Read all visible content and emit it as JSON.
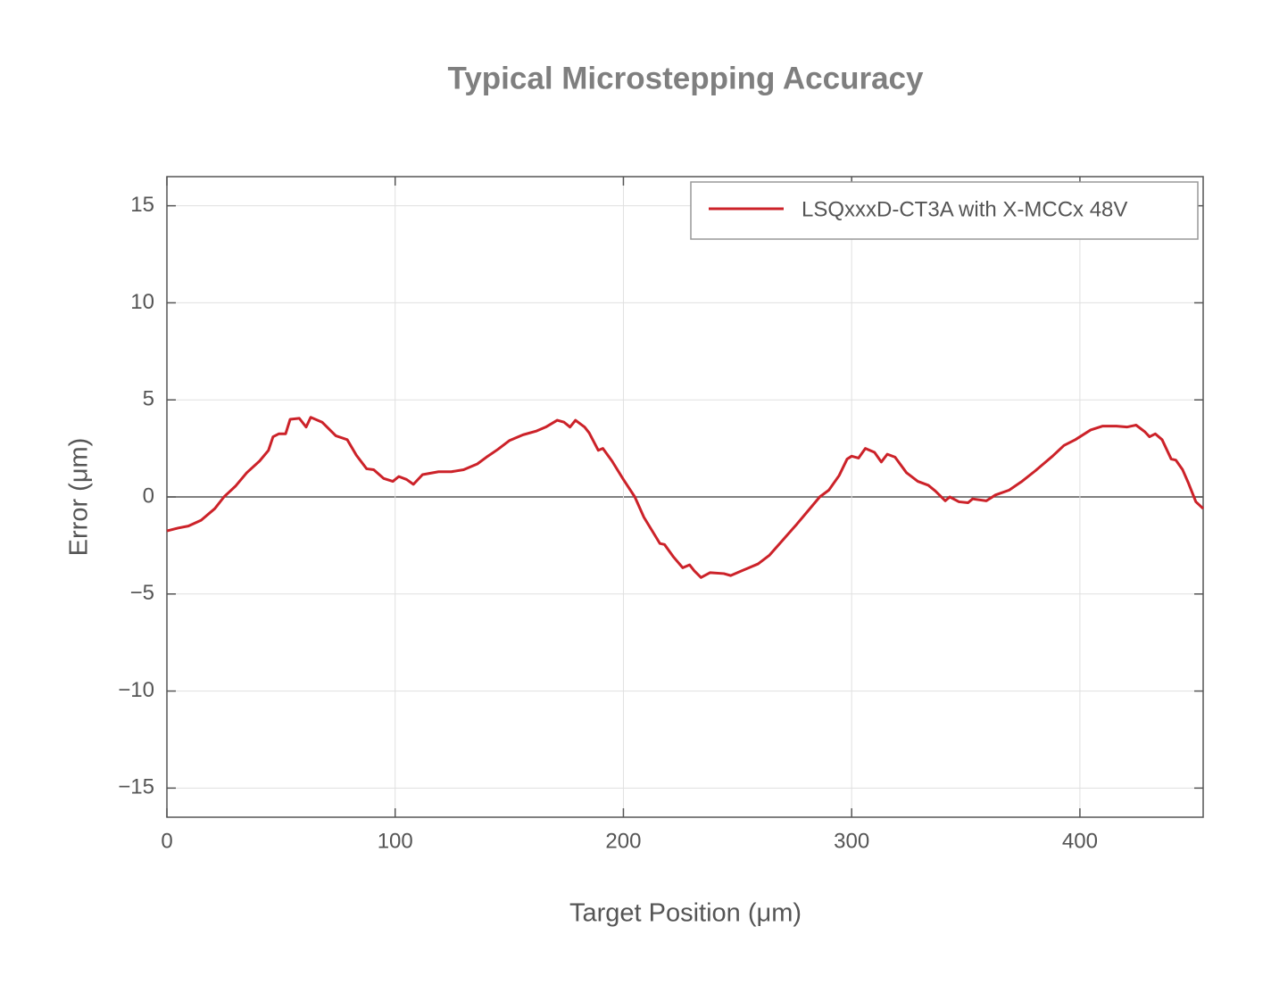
{
  "chart_data": {
    "type": "line",
    "title": "Typical Microstepping Accuracy",
    "xlabel": "Target Position (μm)",
    "ylabel": "Error (μm)",
    "xlim": [
      0,
      454
    ],
    "ylim": [
      -16.5,
      16.5
    ],
    "xticks": [
      0,
      100,
      200,
      300,
      400
    ],
    "yticks": [
      {
        "value": -15,
        "label": "−15"
      },
      {
        "value": -10,
        "label": "−10"
      },
      {
        "value": -5,
        "label": "−5"
      },
      0,
      5,
      10,
      15
    ],
    "grid": true,
    "legend": "upper right",
    "x": [
      0,
      5,
      9.4,
      15,
      21,
      25,
      30,
      35,
      40.6,
      44.5,
      46.5,
      49,
      52,
      54,
      58,
      61,
      63,
      68,
      74,
      79,
      83,
      87.5,
      90.6,
      95,
      99,
      101.6,
      105,
      108,
      112,
      119,
      124.6,
      130,
      136,
      140,
      145,
      150,
      156,
      162,
      166,
      171,
      174,
      176.6,
      179,
      183,
      185,
      189,
      191,
      195,
      200,
      205,
      209,
      216,
      218,
      222,
      226,
      229,
      231,
      234,
      238,
      244,
      247,
      252,
      259,
      264,
      270,
      276,
      281,
      286,
      290,
      294.5,
      298,
      300,
      303,
      306,
      310,
      313,
      315.6,
      319,
      324,
      329,
      333.6,
      336.7,
      341,
      343,
      347,
      351,
      353,
      359,
      363,
      369,
      374.6,
      380.5,
      384,
      388,
      393,
      398,
      404.7,
      410,
      416,
      420.6,
      424.6,
      428.5,
      430.5,
      433,
      436,
      440,
      442,
      445,
      447.6,
      450.8,
      454
    ],
    "series": [
      {
        "name": "LSQxxxD-CT3A with X-MCCx 48V",
        "color": "#cc2229",
        "values": [
          -1.75,
          -1.6,
          -1.5,
          -1.2,
          -0.6,
          0,
          0.55,
          1.25,
          1.85,
          2.4,
          3.1,
          3.25,
          3.25,
          4.0,
          4.05,
          3.6,
          4.1,
          3.85,
          3.15,
          2.95,
          2.15,
          1.45,
          1.4,
          0.95,
          0.8,
          1.05,
          0.9,
          0.65,
          1.15,
          1.3,
          1.3,
          1.4,
          1.7,
          2.05,
          2.45,
          2.9,
          3.2,
          3.4,
          3.6,
          3.95,
          3.85,
          3.6,
          3.95,
          3.6,
          3.3,
          2.4,
          2.5,
          1.85,
          0.9,
          0,
          -1.05,
          -2.4,
          -2.45,
          -3.1,
          -3.65,
          -3.5,
          -3.8,
          -4.15,
          -3.9,
          -3.95,
          -4.05,
          -3.8,
          -3.45,
          -3.0,
          -2.2,
          -1.4,
          -0.7,
          0,
          0.35,
          1.1,
          1.95,
          2.1,
          2.0,
          2.5,
          2.3,
          1.8,
          2.2,
          2.05,
          1.25,
          0.8,
          0.6,
          0.3,
          -0.2,
          0,
          -0.25,
          -0.3,
          -0.1,
          -0.2,
          0.1,
          0.35,
          0.8,
          1.35,
          1.7,
          2.1,
          2.65,
          2.95,
          3.45,
          3.65,
          3.65,
          3.6,
          3.7,
          3.35,
          3.1,
          3.25,
          2.95,
          1.95,
          1.9,
          1.4,
          0.7,
          -0.25,
          -0.6
        ]
      }
    ]
  }
}
